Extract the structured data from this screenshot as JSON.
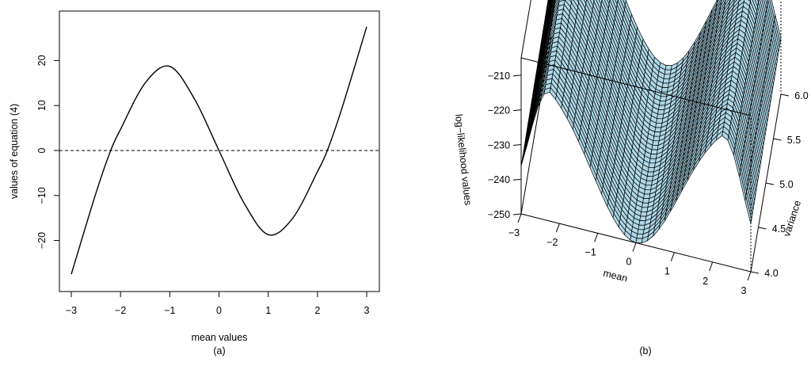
{
  "chart_data": [
    {
      "type": "line",
      "xlabel": "mean values",
      "ylabel": "values of equation (4)",
      "caption": "(a)",
      "xlim": [
        -3,
        3
      ],
      "ylim": [
        -28,
        28
      ],
      "xticks": [
        -3,
        -2,
        -1,
        0,
        1,
        2,
        3
      ],
      "yticks": [
        -20,
        -10,
        0,
        10,
        20
      ],
      "reference_line": {
        "y": 0,
        "style": "dashed"
      },
      "series": [
        {
          "x": [
            -3.0,
            -2.5,
            -2.2,
            -2.0,
            -1.5,
            -1.0,
            -0.5,
            0.0,
            0.5,
            1.0,
            1.5,
            2.0,
            2.2,
            2.5,
            3.0
          ],
          "values": [
            -27.5,
            -9.5,
            0.0,
            4.7,
            15.0,
            18.7,
            11.5,
            0.0,
            -11.5,
            -18.7,
            -15.0,
            -4.7,
            0.0,
            9.5,
            27.5
          ]
        }
      ]
    },
    {
      "type": "surface",
      "xlabel": "mean",
      "ylabel": "variance",
      "zlabel": "log−likelihood values",
      "caption": "(b)",
      "xlim": [
        -3,
        3
      ],
      "ylim": [
        4.0,
        6.0
      ],
      "zlim": [
        -250,
        -205
      ],
      "xticks": [
        "−3",
        "−2",
        "−1",
        "0",
        "1",
        "2",
        "3"
      ],
      "yticks": [
        "4.0",
        "4.5",
        "5.0",
        "5.5",
        "6.0"
      ],
      "zticks": [
        "−210",
        "−220",
        "−230",
        "−240",
        "−250"
      ],
      "surface_color": "#add8e6",
      "mesh_color": "#000000",
      "features": {
        "minimum_at_mean": 0,
        "minimum_value": -250,
        "maxima_near_mean": [
          -2.2,
          2.2
        ],
        "max_value": -205
      }
    }
  ],
  "labels": {
    "a": {
      "xlabel": "mean values",
      "ylabel": "values of equation (4)",
      "caption": "(a)",
      "xticks": [
        "−3",
        "−2",
        "−1",
        "0",
        "1",
        "2",
        "3"
      ],
      "yticks": [
        "−20",
        "−10",
        "0",
        "10",
        "20"
      ]
    },
    "b": {
      "xlabel": "mean",
      "ylabel": "variance",
      "zlabel": "log−likelihood values",
      "caption": "(b)",
      "xticks": [
        "−3",
        "−2",
        "−1",
        "0",
        "1",
        "2",
        "3"
      ],
      "yticks": [
        "4.0",
        "4.5",
        "5.0",
        "5.5",
        "6.0"
      ],
      "zticks": [
        "−210",
        "−220",
        "−230",
        "−240",
        "−250"
      ]
    }
  }
}
